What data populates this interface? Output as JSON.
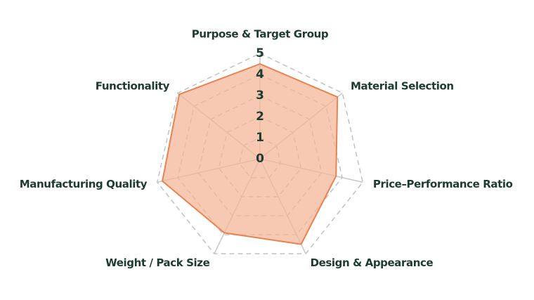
{
  "chart_data": {
    "type": "radar",
    "categories": [
      "Purpose & Target Group",
      "Material Selection",
      "Price–Performance Ratio",
      "Design & Appearance",
      "Weight / Pack Size",
      "Manufacturing Quality",
      "Functionality"
    ],
    "values": [
      4.5,
      4.7,
      3.7,
      4.5,
      3.9,
      4.75,
      4.9
    ],
    "rlim": [
      0,
      5
    ],
    "rticks": [
      0,
      1,
      2,
      3,
      4,
      5
    ],
    "color": "#e8834f",
    "fill": "#f4b598",
    "grid": true
  }
}
